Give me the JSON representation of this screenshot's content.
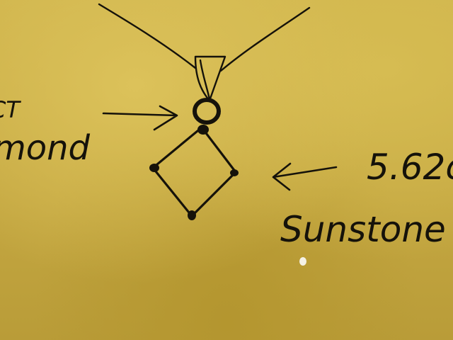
{
  "labels": {
    "left_top": "CT",
    "left_bottom": "mond",
    "right_top": "5.62c",
    "right_bottom": "Sunstone"
  },
  "colors": {
    "paper": "#c9ad45",
    "ink": "#15120a"
  }
}
